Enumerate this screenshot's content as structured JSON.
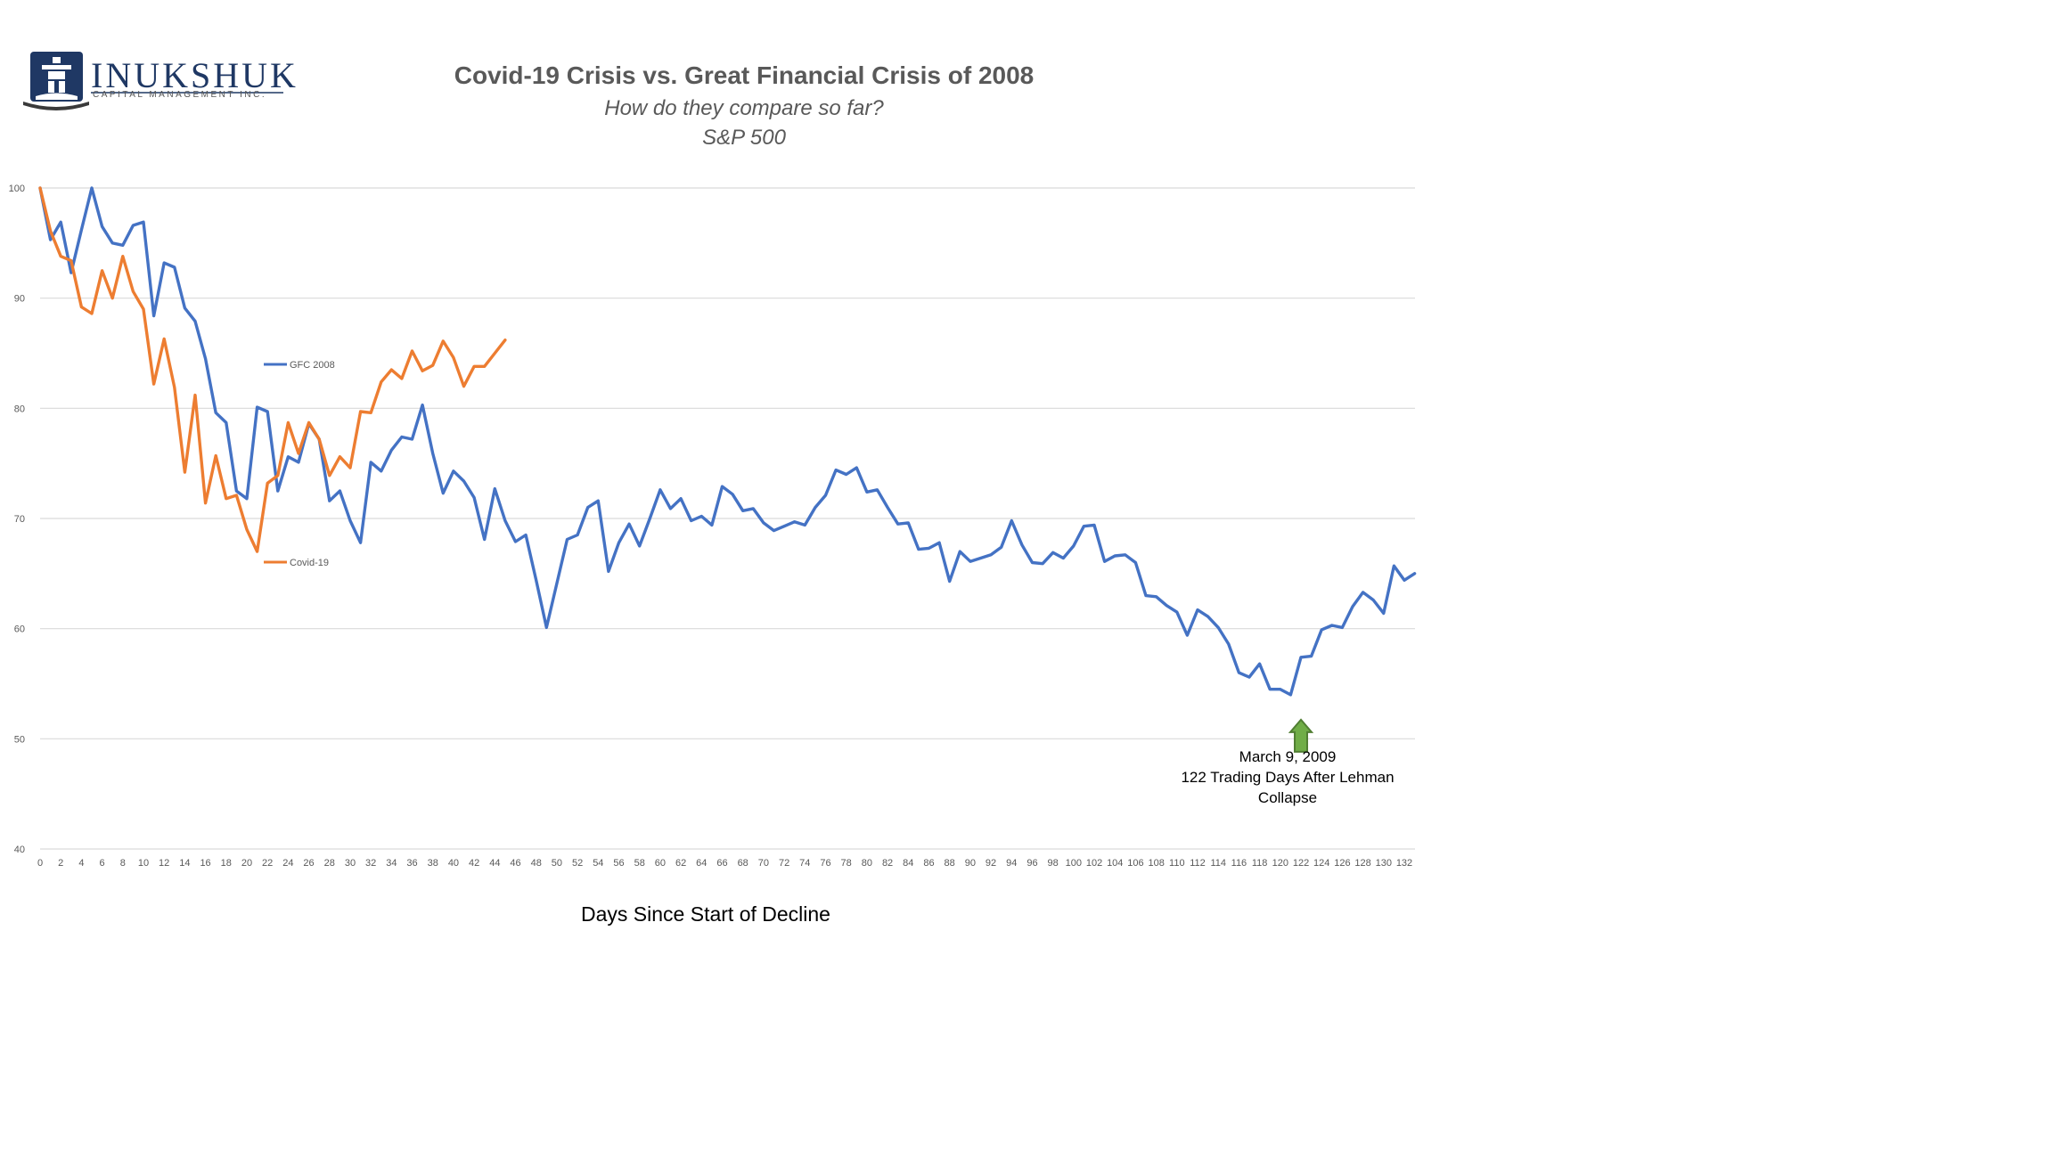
{
  "logo": {
    "name": "INUKSHUK",
    "tagline": "CAPITAL MANAGEMENT INC."
  },
  "colors": {
    "gfc": "#4472C4",
    "covid": "#ED7D31",
    "arrow": "#70AD47",
    "arrow_border": "#507E32",
    "grid": "#d9d9d9",
    "title": "#595959",
    "logo_navy": "#1f3864"
  },
  "chart_data": {
    "type": "line",
    "title": "Covid-19 Crisis vs. Great Financial Crisis of 2008",
    "subtitle": "How do they compare so far?",
    "subtitle2": "S&P 500",
    "xlabel": "Days Since Start of Decline",
    "ylabel": "",
    "xlim": [
      0,
      133
    ],
    "ylim": [
      40,
      100
    ],
    "y_ticks": [
      40,
      50,
      60,
      70,
      80,
      90,
      100
    ],
    "x_ticks": [
      0,
      2,
      4,
      6,
      8,
      10,
      12,
      14,
      16,
      18,
      20,
      22,
      24,
      26,
      28,
      30,
      32,
      34,
      36,
      38,
      40,
      42,
      44,
      46,
      48,
      50,
      52,
      54,
      56,
      58,
      60,
      62,
      64,
      66,
      68,
      70,
      72,
      74,
      76,
      78,
      80,
      82,
      84,
      86,
      88,
      90,
      92,
      94,
      96,
      98,
      100,
      102,
      104,
      106,
      108,
      110,
      112,
      114,
      116,
      118,
      120,
      122,
      124,
      126,
      128,
      130,
      132
    ],
    "grid": true,
    "legend_placement": "inside-left",
    "series": [
      {
        "name": "GFC 2008",
        "color_key": "gfc",
        "values": [
          100,
          95.3,
          96.9,
          92.3,
          96.2,
          100,
          96.5,
          95,
          94.8,
          96.6,
          96.9,
          88.4,
          93.2,
          92.8,
          89.1,
          87.9,
          84.5,
          79.6,
          78.7,
          72.5,
          71.8,
          80.1,
          79.7,
          72.5,
          75.6,
          75.1,
          78.6,
          77.2,
          71.6,
          72.5,
          69.8,
          67.8,
          75.1,
          74.3,
          76.2,
          77.4,
          77.2,
          80.3,
          75.9,
          72.3,
          74.3,
          73.4,
          71.9,
          68.1,
          72.7,
          69.8,
          67.9,
          68.5,
          64.4,
          60.1,
          64.1,
          68.1,
          68.5,
          71,
          71.6,
          65.2,
          67.8,
          69.5,
          67.5,
          70,
          72.6,
          70.9,
          71.8,
          69.8,
          70.2,
          69.4,
          72.9,
          72.2,
          70.7,
          70.9,
          69.6,
          68.9,
          69.3,
          69.7,
          69.4,
          71,
          72.1,
          74.4,
          74,
          74.6,
          72.4,
          72.6,
          71,
          69.5,
          69.6,
          67.2,
          67.3,
          67.8,
          64.3,
          67,
          66.1,
          66.4,
          66.7,
          67.4,
          69.8,
          67.6,
          66,
          65.9,
          66.9,
          66.4,
          67.5,
          69.3,
          69.4,
          66.1,
          66.6,
          66.7,
          66,
          63,
          62.9,
          62.1,
          61.5,
          59.4,
          61.7,
          61.1,
          60.1,
          58.6,
          56,
          55.6,
          56.8,
          54.5,
          54.5,
          54,
          57.4,
          57.5,
          59.9,
          60.3,
          60.1,
          62,
          63.3,
          62.6,
          61.4,
          65.7,
          64.4,
          65
        ]
      },
      {
        "name": "Covid-19",
        "color_key": "covid",
        "values": [
          100,
          96.1,
          93.8,
          93.4,
          89.2,
          88.6,
          92.5,
          90,
          93.8,
          90.6,
          89,
          82.2,
          86.3,
          81.9,
          74.2,
          81.2,
          71.4,
          75.7,
          71.8,
          72.1,
          69,
          67,
          73.2,
          73.9,
          78.7,
          75.9,
          78.7,
          77.2,
          73.9,
          75.6,
          74.6,
          79.7,
          79.6,
          82.4,
          83.5,
          82.7,
          85.2,
          83.4,
          83.9,
          86.1,
          84.6,
          82,
          83.8,
          83.8,
          85,
          86.2
        ]
      }
    ],
    "annotation": {
      "x": 122,
      "y": 54,
      "lines": [
        "March 9, 2009",
        "122 Trading Days After Lehman",
        "Collapse"
      ]
    }
  }
}
